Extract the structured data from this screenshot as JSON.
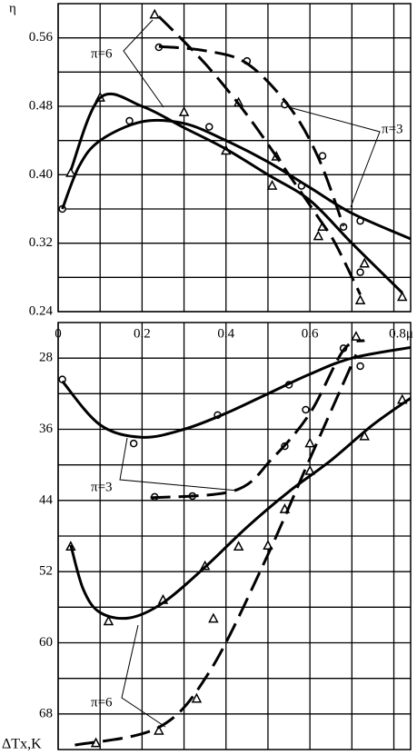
{
  "chart_data": [
    {
      "type": "scatter",
      "y_label": "η",
      "annotations": [
        "π=6",
        "π=3"
      ],
      "xlim": [
        0,
        0.84
      ],
      "ylim": [
        0.24,
        0.6
      ],
      "xticks": [
        0,
        0.2,
        0.4,
        0.6,
        {
          "value": 0.8,
          "label": "0.8μ"
        }
      ],
      "yticks": [
        0.24,
        0.32,
        {
          "value": 0.4,
          "label": "0.40"
        },
        0.48,
        0.56
      ],
      "grid": true,
      "series": [
        {
          "marker": "circle",
          "color": "#000",
          "x": [
            0.01,
            0.17,
            0.36,
            0.24,
            0.45,
            0.54,
            0.58,
            0.63,
            0.68,
            0.72,
            0.72
          ],
          "values": [
            0.36,
            0.463,
            0.456,
            0.549,
            0.533,
            0.482,
            0.387,
            0.422,
            0.339,
            0.346,
            0.286
          ]
        },
        {
          "marker": "triangle",
          "color": "#000",
          "x": [
            0.03,
            0.1,
            0.23,
            0.3,
            0.4,
            0.43,
            0.52,
            0.51,
            0.63,
            0.62,
            0.73,
            0.72,
            0.82
          ],
          "values": [
            0.402,
            0.49,
            0.587,
            0.473,
            0.428,
            0.484,
            0.421,
            0.387,
            0.339,
            0.328,
            0.296,
            0.253,
            0.257
          ]
        },
        {
          "line": "solid",
          "color": "#000",
          "x": [
            0.03,
            0.1,
            0.2,
            0.3,
            0.4,
            0.5,
            0.6,
            0.7,
            0.82
          ],
          "values": [
            0.405,
            0.49,
            0.48,
            0.455,
            0.43,
            0.4,
            0.37,
            0.32,
            0.262
          ]
        },
        {
          "line": "solid",
          "color": "#000",
          "x": [
            0.01,
            0.05,
            0.1,
            0.2,
            0.3,
            0.4,
            0.5,
            0.6,
            0.7,
            0.84
          ],
          "values": [
            0.36,
            0.41,
            0.44,
            0.462,
            0.46,
            0.44,
            0.415,
            0.385,
            0.355,
            0.325
          ]
        },
        {
          "line": "dashed",
          "color": "#000",
          "x": [
            0.24,
            0.35,
            0.45,
            0.55,
            0.62,
            0.66,
            0.72
          ],
          "values": [
            0.585,
            0.53,
            0.47,
            0.4,
            0.35,
            0.32,
            0.26
          ]
        },
        {
          "line": "dashed",
          "color": "#000",
          "x": [
            0.24,
            0.35,
            0.45,
            0.55,
            0.62,
            0.68
          ],
          "values": [
            0.55,
            0.545,
            0.53,
            0.48,
            0.42,
            0.34
          ]
        }
      ]
    },
    {
      "type": "scatter",
      "y_label": "ΔTx,K",
      "annotations": [
        "π=3",
        "π=6"
      ],
      "xlim": [
        0,
        0.84
      ],
      "ylim": [
        72,
        24
      ],
      "yticks": [
        28,
        36,
        44,
        52,
        60,
        68
      ],
      "grid": true,
      "series": [
        {
          "marker": "circle",
          "color": "#000",
          "x": [
            0.01,
            0.18,
            0.38,
            0.23,
            0.32,
            0.54,
            0.55,
            0.59,
            0.68,
            0.72
          ],
          "values": [
            30.4,
            37.6,
            34.4,
            43.6,
            43.5,
            37.9,
            31.0,
            33.8,
            26.9,
            28.9
          ]
        },
        {
          "marker": "triangle",
          "color": "#000",
          "x": [
            0.03,
            0.12,
            0.25,
            0.35,
            0.43,
            0.37,
            0.5,
            0.54,
            0.6,
            0.6,
            0.73,
            0.71,
            0.82,
            0.09,
            0.24,
            0.33
          ],
          "values": [
            49.2,
            57.6,
            55.2,
            51.4,
            49.2,
            57.3,
            49.1,
            45.0,
            40.7,
            37.6,
            36.8,
            25.6,
            32.7,
            71.3,
            69.9,
            66.3
          ]
        },
        {
          "line": "solid",
          "color": "#000",
          "x": [
            0.01,
            0.1,
            0.2,
            0.3,
            0.4,
            0.5,
            0.6,
            0.7,
            0.84
          ],
          "values": [
            30.6,
            35.5,
            36.9,
            36.0,
            34.2,
            32.0,
            29.8,
            28.0,
            26.8
          ]
        },
        {
          "line": "solid",
          "color": "#000",
          "x": [
            0.03,
            0.06,
            0.1,
            0.17,
            0.25,
            0.35,
            0.45,
            0.55,
            0.65,
            0.75,
            0.84
          ],
          "values": [
            49,
            54,
            56.6,
            57.2,
            55.5,
            51.5,
            47,
            43,
            39.5,
            35.5,
            32.5
          ]
        },
        {
          "line": "dashed",
          "color": "#000",
          "x": [
            0.22,
            0.42,
            0.51,
            0.6,
            0.68,
            0.73
          ],
          "values": [
            43.7,
            42.9,
            39.3,
            34.2,
            27.1,
            26
          ]
        },
        {
          "line": "dashed",
          "color": "#000",
          "x": [
            0.04,
            0.24,
            0.36,
            0.49,
            0.6,
            0.71
          ],
          "values": [
            71.5,
            69.5,
            63.3,
            51.1,
            39.3,
            27.6
          ]
        }
      ]
    }
  ]
}
